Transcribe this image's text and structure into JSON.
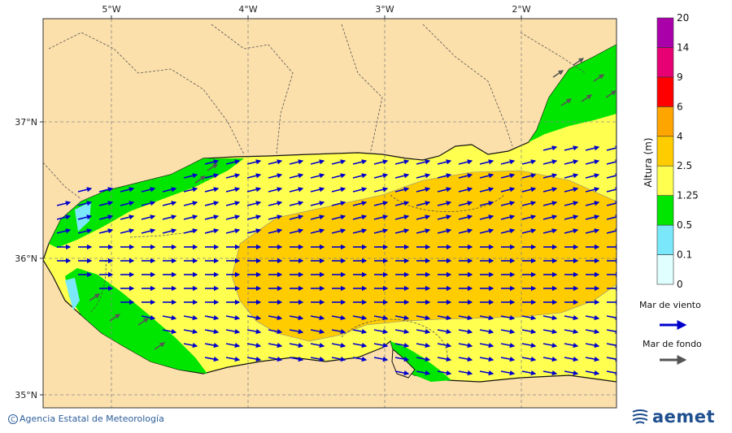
{
  "map": {
    "lon_ticks": [
      "5°W",
      "4°W",
      "3°W",
      "2°W"
    ],
    "lat_ticks": [
      "37°N",
      "36°N",
      "35°N"
    ],
    "colors": {
      "land": "#fce0ab",
      "sea_0_0_1": "#e0ffff",
      "sea_0_1_0_5": "#7ae8fa",
      "sea_0_5_1_25": "#00e600",
      "sea_1_25_2_5": "#ffff50",
      "sea_2_5_4": "#ffcc00",
      "wind_arrow": "#0000cc",
      "swell_arrow": "#555555"
    }
  },
  "colorbar": {
    "title": "Altura (m)",
    "levels": [
      "0",
      "0.1",
      "0.5",
      "1.25",
      "2.5",
      "4",
      "6",
      "9",
      "14",
      "20"
    ],
    "colors": [
      "#e0ffff",
      "#7ae8fa",
      "#00e600",
      "#ffff50",
      "#ffcc00",
      "#ffa500",
      "#ff0000",
      "#e60073",
      "#aa00aa"
    ]
  },
  "legend": {
    "wind_label": "Mar de viento",
    "swell_label": "Mar de fondo"
  },
  "footer": {
    "copyright": "Agencia Estatal de Meteorología",
    "brand": "aemet"
  }
}
